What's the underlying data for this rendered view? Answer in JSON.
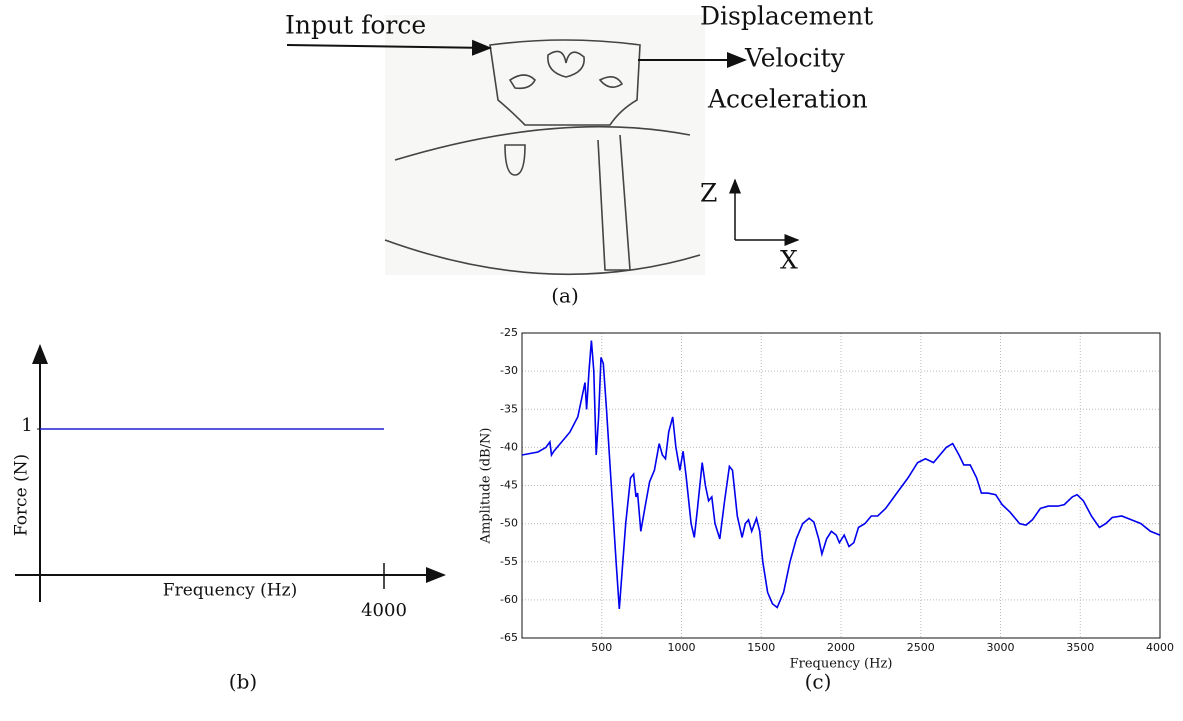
{
  "figure_a": {
    "input_label": "Input force",
    "output_labels": [
      "Displacement",
      "Velocity",
      "Acceleration"
    ],
    "axes": [
      "Z",
      "X"
    ]
  },
  "captions": [
    "(a)",
    "(b)",
    "(c)"
  ],
  "chart_data": [
    {
      "type": "line",
      "x": [
        0,
        4000
      ],
      "values": [
        1,
        1
      ],
      "color": "#1f1fd6",
      "xlabel": "Frequency (Hz)",
      "ylabel": "Force (N)",
      "xlim": [
        0,
        4000
      ],
      "ylim": [
        0,
        1
      ],
      "xticks": [
        4000
      ],
      "yticks": [
        1
      ],
      "grid": false
    },
    {
      "type": "line",
      "color": "#0000ee",
      "xlabel": "Frequency (Hz)",
      "ylabel": "Amplitude (dB/N)",
      "xlim": [
        0,
        4000
      ],
      "ylim": [
        -65,
        -25
      ],
      "xticks": [
        500,
        1000,
        1500,
        2000,
        2500,
        3000,
        3500,
        4000
      ],
      "yticks": [
        -25,
        -30,
        -35,
        -40,
        -45,
        -50,
        -55,
        -60,
        -65
      ],
      "grid": true,
      "x": [
        0,
        100,
        150,
        175,
        185,
        200,
        300,
        350,
        380,
        395,
        405,
        420,
        435,
        450,
        465,
        480,
        495,
        510,
        530,
        560,
        590,
        610,
        625,
        650,
        680,
        700,
        715,
        725,
        745,
        770,
        800,
        830,
        860,
        880,
        900,
        920,
        945,
        965,
        990,
        1010,
        1030,
        1060,
        1080,
        1100,
        1130,
        1150,
        1170,
        1190,
        1210,
        1240,
        1270,
        1300,
        1320,
        1350,
        1380,
        1400,
        1420,
        1440,
        1470,
        1490,
        1510,
        1540,
        1570,
        1600,
        1640,
        1680,
        1720,
        1760,
        1800,
        1830,
        1860,
        1880,
        1910,
        1940,
        1970,
        1990,
        2020,
        2050,
        2080,
        2110,
        2150,
        2190,
        2230,
        2280,
        2350,
        2420,
        2480,
        2530,
        2580,
        2620,
        2660,
        2700,
        2740,
        2770,
        2810,
        2850,
        2880,
        2920,
        2970,
        3010,
        3060,
        3120,
        3160,
        3200,
        3250,
        3300,
        3360,
        3400,
        3450,
        3480,
        3520,
        3570,
        3620,
        3660,
        3700,
        3760,
        3820,
        3880,
        3940,
        4000
      ],
      "values": [
        -41,
        -40.6,
        -40,
        -39.3,
        -41,
        -40.5,
        -38,
        -36,
        -33,
        -31.5,
        -35,
        -30,
        -26,
        -30,
        -41,
        -36,
        -28.2,
        -29,
        -35,
        -45,
        -55,
        -61.2,
        -57,
        -50,
        -44,
        -43.5,
        -46.5,
        -46,
        -51,
        -48,
        -44.5,
        -43,
        -39.5,
        -41,
        -41.5,
        -38,
        -36,
        -40,
        -43,
        -40.5,
        -44,
        -50,
        -51.8,
        -48,
        -42,
        -45,
        -47,
        -46.5,
        -50,
        -52,
        -47,
        -42.5,
        -43,
        -49,
        -51.8,
        -50,
        -49.5,
        -51,
        -49.3,
        -51,
        -55,
        -59,
        -60.5,
        -61,
        -59,
        -55,
        -52,
        -50,
        -49.3,
        -49.8,
        -52,
        -54,
        -52,
        -51,
        -51.5,
        -52.5,
        -51.5,
        -53,
        -52.5,
        -50.5,
        -50,
        -49,
        -49,
        -48,
        -46,
        -44,
        -42,
        -41.5,
        -42,
        -41,
        -40,
        -39.5,
        -41,
        -42.3,
        -42.3,
        -44,
        -46,
        -46,
        -46.2,
        -47.5,
        -48.5,
        -50,
        -50.2,
        -49.5,
        -48,
        -47.7,
        -47.7,
        -47.5,
        -46.5,
        -46.2,
        -47,
        -49,
        -50.5,
        -50,
        -49.2,
        -49,
        -49.5,
        -50,
        -51,
        -51.5
      ]
    }
  ]
}
